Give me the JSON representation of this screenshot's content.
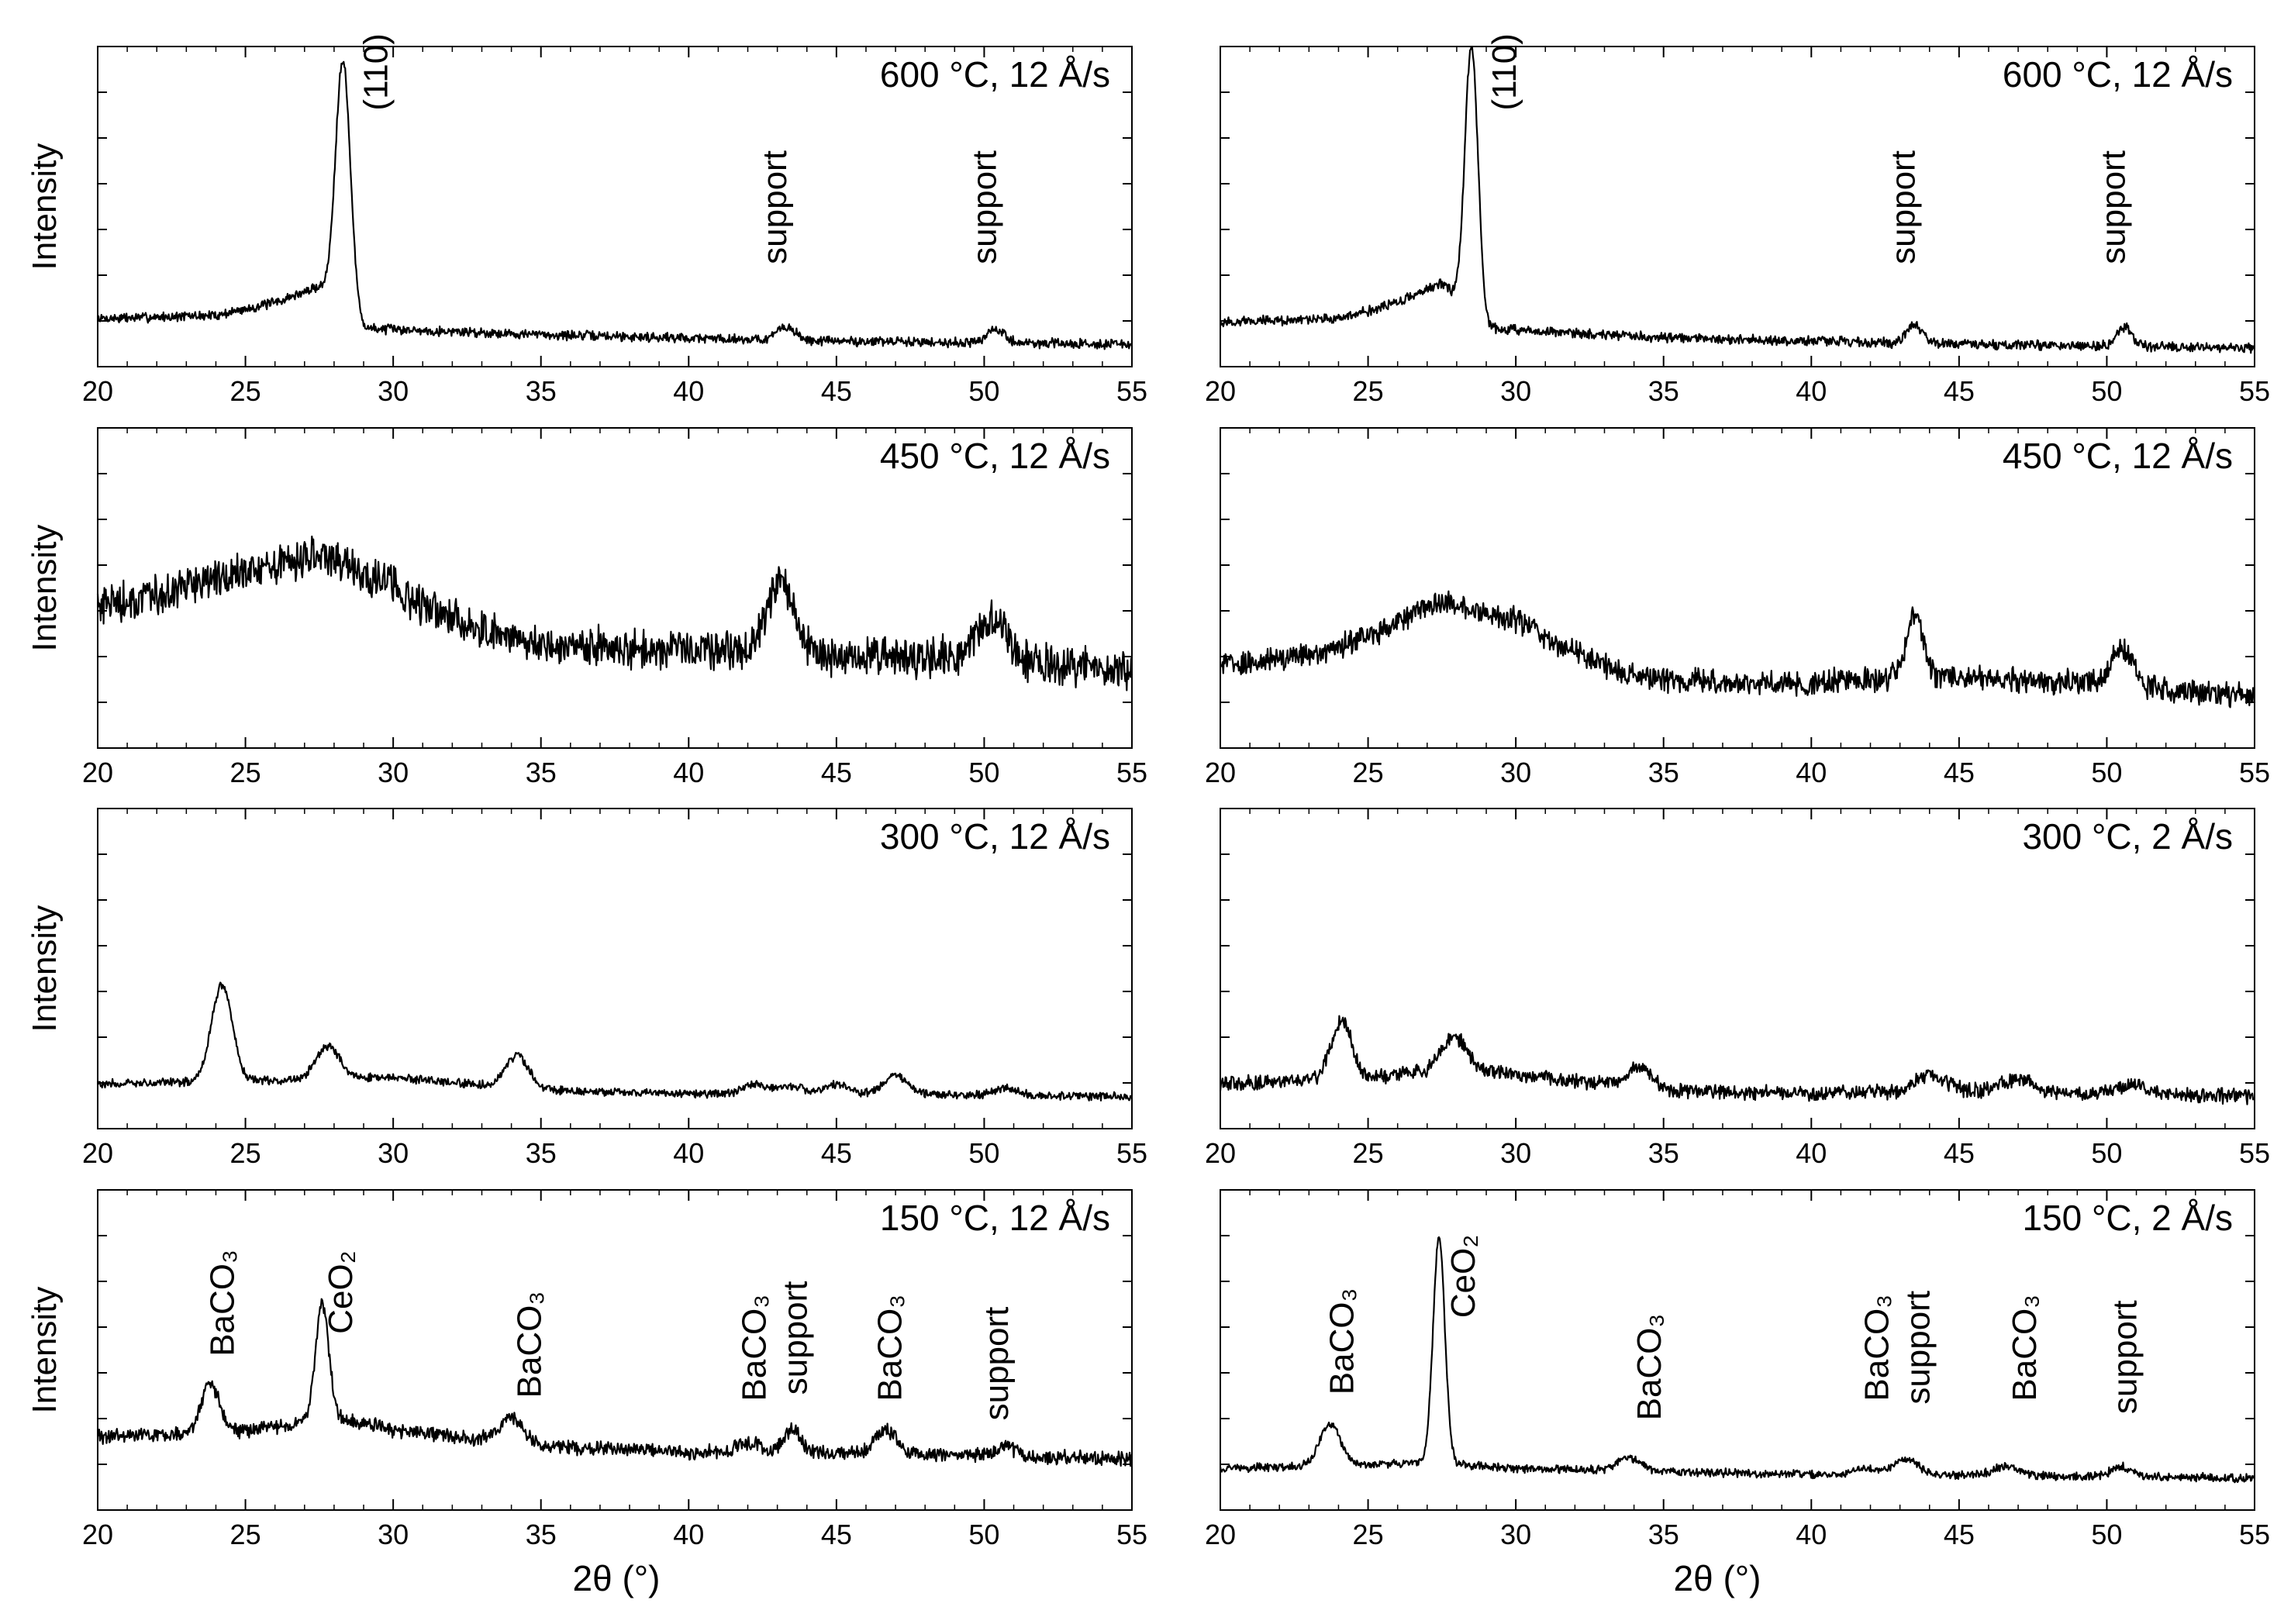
{
  "figure": {
    "xlabel": "2θ (°)",
    "ylabel": "Intensity"
  },
  "chart_data": [
    {
      "type": "line",
      "panel": "left-row-1",
      "label": "600 °C, 12 Å/s",
      "xlabel": "",
      "ylabel": "Intensity",
      "xlim": [
        20,
        55
      ],
      "ylim": [
        0,
        100
      ],
      "xticks": [
        20,
        25,
        30,
        35,
        40,
        45,
        50,
        55
      ],
      "series": [
        {
          "name": "600 °C, 12 Å/s",
          "baseline": [
            [
              20,
              15
            ],
            [
              24,
              16
            ],
            [
              26,
              20
            ],
            [
              27.5,
              25
            ],
            [
              29,
              12
            ],
            [
              35,
              10
            ],
            [
              45,
              8
            ],
            [
              55,
              7
            ]
          ],
          "noise": 1.2,
          "peaks": [
            [
              28.3,
              78,
              0.25
            ],
            [
              43.3,
              4,
              0.3
            ],
            [
              50.4,
              4,
              0.3
            ]
          ]
        }
      ],
      "annotations": [
        {
          "text": "(110)",
          "x": 29.8,
          "y": 80
        },
        {
          "text": "support",
          "x": 43.3,
          "y": 32
        },
        {
          "text": "support",
          "x": 50.4,
          "y": 32
        }
      ]
    },
    {
      "type": "line",
      "panel": "right-row-1",
      "label": "600 °C, 12 Å/s",
      "xlabel": "",
      "ylabel": "",
      "xlim": [
        20,
        55
      ],
      "ylim": [
        0,
        100
      ],
      "xticks": [
        20,
        25,
        30,
        35,
        40,
        45,
        50,
        55
      ],
      "series": [
        {
          "name": "600 °C, 12 Å/s",
          "baseline": [
            [
              20,
              14
            ],
            [
              24,
              15
            ],
            [
              26,
              20
            ],
            [
              27.5,
              26
            ],
            [
              29,
              12
            ],
            [
              35,
              9
            ],
            [
              45,
              7
            ],
            [
              55,
              6
            ]
          ],
          "noise": 1.2,
          "peaks": [
            [
              28.5,
              84,
              0.22
            ],
            [
              43.5,
              6,
              0.25
            ],
            [
              50.6,
              6,
              0.25
            ]
          ]
        }
      ],
      "annotations": [
        {
          "text": "(110)",
          "x": 30,
          "y": 80
        },
        {
          "text": "support",
          "x": 43.5,
          "y": 32
        },
        {
          "text": "support",
          "x": 50.6,
          "y": 32
        }
      ]
    },
    {
      "type": "line",
      "panel": "left-row-2",
      "label": "450 °C, 12 Å/s",
      "xlabel": "",
      "ylabel": "Intensity",
      "xlim": [
        20,
        55
      ],
      "ylim": [
        0,
        100
      ],
      "xticks": [
        20,
        25,
        30,
        35,
        40,
        45,
        50,
        55
      ],
      "series": [
        {
          "name": "450 °C, 12 Å/s",
          "baseline": [
            [
              20,
              45
            ],
            [
              22,
              48
            ],
            [
              25,
              55
            ],
            [
              27.5,
              60
            ],
            [
              29,
              55
            ],
            [
              32,
              40
            ],
            [
              35,
              32
            ],
            [
              40,
              31
            ],
            [
              45,
              29
            ],
            [
              50,
              28
            ],
            [
              55,
              24
            ]
          ],
          "noise": 5,
          "peaks": [
            [
              43.1,
              22,
              0.45
            ],
            [
              50.3,
              12,
              0.5
            ]
          ]
        }
      ],
      "annotations": []
    },
    {
      "type": "line",
      "panel": "right-row-2",
      "label": "450 °C, 12 Å/s",
      "xlabel": "",
      "ylabel": "",
      "xlim": [
        20,
        55
      ],
      "ylim": [
        0,
        100
      ],
      "xticks": [
        20,
        25,
        30,
        35,
        40,
        45,
        50,
        55
      ],
      "series": [
        {
          "name": "450 °C, 12 Å/s",
          "baseline": [
            [
              20,
              26
            ],
            [
              23,
              29
            ],
            [
              25,
              35
            ],
            [
              27.5,
              46
            ],
            [
              30,
              40
            ],
            [
              32,
              30
            ],
            [
              34,
              22
            ],
            [
              38,
              20
            ],
            [
              45,
              22
            ],
            [
              50,
              20
            ],
            [
              55,
              16
            ]
          ],
          "noise": 3,
          "peaks": [
            [
              43.5,
              20,
              0.3
            ],
            [
              50.5,
              12,
              0.35
            ]
          ]
        }
      ],
      "annotations": []
    },
    {
      "type": "line",
      "panel": "left-row-3",
      "label": "300 °C, 12 Å/s",
      "xlabel": "",
      "ylabel": "Intensity",
      "xlim": [
        20,
        55
      ],
      "ylim": [
        0,
        100
      ],
      "xticks": [
        20,
        25,
        30,
        35,
        40,
        45,
        50,
        55
      ],
      "series": [
        {
          "name": "300 °C, 12 Å/s",
          "baseline": [
            [
              20,
              14
            ],
            [
              25,
              15
            ],
            [
              30,
              16
            ],
            [
              35,
              12
            ],
            [
              40,
              11
            ],
            [
              45,
              11
            ],
            [
              55,
              10
            ]
          ],
          "noise": 1,
          "peaks": [
            [
              24.2,
              30,
              0.35
            ],
            [
              27.8,
              10,
              0.4
            ],
            [
              34.2,
              10,
              0.4
            ],
            [
              42.3,
              3,
              0.4
            ],
            [
              43.5,
              2,
              0.4
            ],
            [
              45.0,
              3,
              0.4
            ],
            [
              47.0,
              6,
              0.4
            ],
            [
              50.7,
              2,
              0.4
            ]
          ]
        }
      ],
      "annotations": []
    },
    {
      "type": "line",
      "panel": "right-row-3",
      "label": "300 °C, 2 Å/s",
      "xlabel": "",
      "ylabel": "",
      "xlim": [
        20,
        55
      ],
      "ylim": [
        0,
        100
      ],
      "xticks": [
        20,
        25,
        30,
        35,
        40,
        45,
        50,
        55
      ],
      "series": [
        {
          "name": "300 °C, 2 Å/s",
          "baseline": [
            [
              20,
              14
            ],
            [
              25,
              16
            ],
            [
              28,
              19
            ],
            [
              30,
              17
            ],
            [
              35,
              12
            ],
            [
              40,
              11
            ],
            [
              45,
              12
            ],
            [
              55,
              10
            ]
          ],
          "noise": 1.8,
          "peaks": [
            [
              24.1,
              18,
              0.35
            ],
            [
              27.9,
              10,
              0.4
            ],
            [
              34.2,
              7,
              0.4
            ],
            [
              44.0,
              5,
              0.5
            ],
            [
              47.0,
              4,
              0.5
            ],
            [
              50.9,
              3,
              0.5
            ]
          ]
        }
      ],
      "annotations": []
    },
    {
      "type": "line",
      "panel": "left-row-4",
      "label": "150 °C, 12 Å/s",
      "xlabel": "2θ (°)",
      "ylabel": "Intensity",
      "xlim": [
        20,
        55
      ],
      "ylim": [
        0,
        100
      ],
      "xticks": [
        20,
        25,
        30,
        35,
        40,
        45,
        50,
        55
      ],
      "series": [
        {
          "name": "150 °C, 12 Å/s",
          "baseline": [
            [
              20,
              23
            ],
            [
              24,
              24
            ],
            [
              26,
              26
            ],
            [
              28,
              29
            ],
            [
              30,
              25
            ],
            [
              35,
              20
            ],
            [
              40,
              18
            ],
            [
              45,
              18
            ],
            [
              55,
              16
            ]
          ],
          "noise": 1.8,
          "peaks": [
            [
              23.8,
              16,
              0.3
            ],
            [
              27.6,
              36,
              0.22
            ],
            [
              34.0,
              8,
              0.4
            ],
            [
              42.0,
              3,
              0.4
            ],
            [
              43.5,
              7,
              0.3
            ],
            [
              46.7,
              7,
              0.35
            ],
            [
              50.7,
              3,
              0.35
            ]
          ]
        }
      ],
      "annotations": [
        {
          "text": "BaCO₃",
          "x": 24.6,
          "y": 48
        },
        {
          "text": "CeO₂",
          "x": 28.6,
          "y": 55
        },
        {
          "text": "BaCO₃",
          "x": 35.0,
          "y": 35
        },
        {
          "text": "BaCO₃",
          "x": 42.6,
          "y": 34
        },
        {
          "text": "support",
          "x": 44.0,
          "y": 36
        },
        {
          "text": "BaCO₃",
          "x": 47.2,
          "y": 34
        },
        {
          "text": "support",
          "x": 50.8,
          "y": 28
        }
      ]
    },
    {
      "type": "line",
      "panel": "right-row-4",
      "label": "150 °C, 2 Å/s",
      "xlabel": "2θ (°)",
      "ylabel": "",
      "xlim": [
        20,
        55
      ],
      "ylim": [
        0,
        100
      ],
      "xticks": [
        20,
        25,
        30,
        35,
        40,
        45,
        50,
        55
      ],
      "series": [
        {
          "name": "150 °C, 2 Å/s",
          "baseline": [
            [
              20,
              13
            ],
            [
              24,
              14
            ],
            [
              27,
              15
            ],
            [
              30,
              13
            ],
            [
              35,
              12
            ],
            [
              40,
              11
            ],
            [
              45,
              11
            ],
            [
              55,
              10
            ]
          ],
          "noise": 1,
          "peaks": [
            [
              23.7,
              13,
              0.35
            ],
            [
              27.4,
              70,
              0.2
            ],
            [
              33.8,
              4,
              0.4
            ],
            [
              41.8,
              2,
              0.4
            ],
            [
              43.2,
              5,
              0.4
            ],
            [
              46.6,
              3,
              0.4
            ],
            [
              50.5,
              3,
              0.35
            ]
          ]
        }
      ],
      "annotations": [
        {
          "text": "BaCO₃",
          "x": 24.5,
          "y": 36
        },
        {
          "text": "CeO₂",
          "x": 28.6,
          "y": 60
        },
        {
          "text": "BaCO₃",
          "x": 34.9,
          "y": 28
        },
        {
          "text": "BaCO₃",
          "x": 42.6,
          "y": 34
        },
        {
          "text": "support",
          "x": 44.0,
          "y": 33
        },
        {
          "text": "BaCO₃",
          "x": 47.6,
          "y": 34
        },
        {
          "text": "support",
          "x": 51.0,
          "y": 30
        }
      ]
    }
  ]
}
